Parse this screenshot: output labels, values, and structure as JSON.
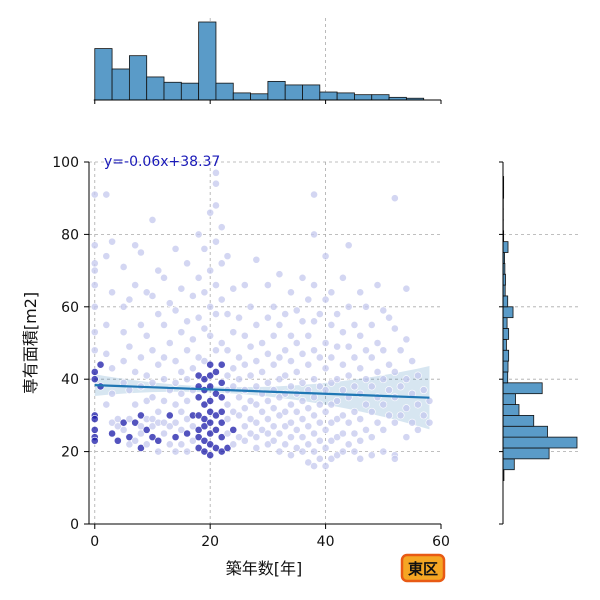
{
  "chart_data": {
    "type": "scatter",
    "xlabel": "築年数[年]",
    "ylabel": "専有面積[m2]",
    "xlim": [
      -1,
      60
    ],
    "ylim": [
      0,
      100
    ],
    "x_ticks": [
      "0",
      "20",
      "40",
      "60"
    ],
    "y_ticks": [
      "0",
      "20",
      "40",
      "60",
      "80",
      "100"
    ],
    "grid": true,
    "annotation": "y=-0.06x+38.37",
    "badge": "東区",
    "regression": {
      "slope": -0.06,
      "intercept": 38.37,
      "x_range": [
        0,
        58
      ]
    },
    "marginal_x_hist": {
      "bin_edges": [
        0,
        3,
        6,
        9,
        12,
        15,
        18,
        21,
        24,
        27,
        30,
        33,
        36,
        39,
        42,
        45,
        48,
        51,
        54,
        57,
        60
      ],
      "counts": [
        58,
        35,
        50,
        26,
        20,
        19,
        88,
        19,
        8,
        7,
        21,
        17,
        17,
        9,
        8,
        6,
        6,
        3,
        2,
        0
      ]
    },
    "marginal_y_hist": {
      "bin_edges": [
        12,
        15,
        18,
        21,
        24,
        27,
        30,
        33,
        36,
        39,
        42,
        45,
        48,
        51,
        54,
        57,
        60,
        63,
        66,
        69,
        72,
        75,
        78,
        81,
        84,
        87,
        90,
        93,
        96
      ],
      "counts": [
        3,
        36,
        147,
        236,
        142,
        98,
        51,
        40,
        125,
        15,
        16,
        18,
        11,
        18,
        13,
        32,
        15,
        7,
        8,
        6,
        5,
        16,
        2,
        1,
        1,
        1,
        2,
        2
      ]
    },
    "colors": {
      "points_light": "#c4c8ee",
      "points_dark": "#1a1aa8",
      "regression": "#1f77b4",
      "hist": "#5a9bc8",
      "annotation": "#1a1ab8",
      "badge_fill": "#f5a623",
      "badge_border": "#e85a14"
    },
    "points": [
      [
        0,
        91
      ],
      [
        2,
        91
      ],
      [
        0,
        77
      ],
      [
        0,
        72
      ],
      [
        0,
        70
      ],
      [
        0,
        66
      ],
      [
        0,
        60
      ],
      [
        0,
        53
      ],
      [
        0,
        48
      ],
      [
        0,
        42
      ],
      [
        0,
        40
      ],
      [
        0,
        30
      ],
      [
        0,
        29
      ],
      [
        0,
        26
      ],
      [
        0,
        24
      ],
      [
        0,
        23
      ],
      [
        1,
        44
      ],
      [
        1,
        38
      ],
      [
        2,
        74
      ],
      [
        2,
        55
      ],
      [
        2,
        47
      ],
      [
        2,
        33
      ],
      [
        3,
        43
      ],
      [
        3,
        78
      ],
      [
        3,
        64
      ],
      [
        3,
        36
      ],
      [
        3,
        28
      ],
      [
        3,
        25
      ],
      [
        4,
        29
      ],
      [
        4,
        27
      ],
      [
        4,
        23
      ],
      [
        5,
        71
      ],
      [
        5,
        60
      ],
      [
        5,
        53
      ],
      [
        5,
        45
      ],
      [
        5,
        39
      ],
      [
        5,
        28
      ],
      [
        5,
        26
      ],
      [
        6,
        62
      ],
      [
        6,
        49
      ],
      [
        6,
        37
      ],
      [
        6,
        29
      ],
      [
        6,
        24
      ],
      [
        6,
        22
      ],
      [
        7,
        77
      ],
      [
        7,
        66
      ],
      [
        7,
        42
      ],
      [
        7,
        33
      ],
      [
        7,
        28
      ],
      [
        7,
        23
      ],
      [
        8,
        75
      ],
      [
        8,
        55
      ],
      [
        8,
        46
      ],
      [
        8,
        38
      ],
      [
        8,
        30
      ],
      [
        8,
        27
      ],
      [
        8,
        25
      ],
      [
        8,
        21
      ],
      [
        9,
        64
      ],
      [
        9,
        52
      ],
      [
        9,
        41
      ],
      [
        9,
        34
      ],
      [
        9,
        29
      ],
      [
        9,
        26
      ],
      [
        9,
        22
      ],
      [
        10,
        84
      ],
      [
        10,
        63
      ],
      [
        10,
        48
      ],
      [
        10,
        39
      ],
      [
        10,
        35
      ],
      [
        10,
        29
      ],
      [
        10,
        27
      ],
      [
        10,
        24
      ],
      [
        11,
        70
      ],
      [
        11,
        58
      ],
      [
        11,
        44
      ],
      [
        11,
        31
      ],
      [
        11,
        28
      ],
      [
        11,
        23
      ],
      [
        11,
        20
      ],
      [
        12,
        68
      ],
      [
        12,
        55
      ],
      [
        12,
        46
      ],
      [
        12,
        40
      ],
      [
        12,
        34
      ],
      [
        12,
        28
      ],
      [
        12,
        25
      ],
      [
        13,
        61
      ],
      [
        13,
        50
      ],
      [
        13,
        37
      ],
      [
        13,
        30
      ],
      [
        13,
        27
      ],
      [
        13,
        22
      ],
      [
        14,
        76
      ],
      [
        14,
        59
      ],
      [
        14,
        45
      ],
      [
        14,
        39
      ],
      [
        14,
        33
      ],
      [
        14,
        28
      ],
      [
        14,
        24
      ],
      [
        14,
        20
      ],
      [
        15,
        65
      ],
      [
        15,
        53
      ],
      [
        15,
        42
      ],
      [
        15,
        36
      ],
      [
        15,
        31
      ],
      [
        15,
        26
      ],
      [
        15,
        22
      ],
      [
        16,
        72
      ],
      [
        16,
        56
      ],
      [
        16,
        48
      ],
      [
        16,
        40
      ],
      [
        16,
        34
      ],
      [
        16,
        29
      ],
      [
        16,
        25
      ],
      [
        16,
        20
      ],
      [
        17,
        63
      ],
      [
        17,
        51
      ],
      [
        17,
        43
      ],
      [
        17,
        37
      ],
      [
        17,
        30
      ],
      [
        17,
        27
      ],
      [
        17,
        23
      ],
      [
        18,
        80
      ],
      [
        18,
        68
      ],
      [
        18,
        57
      ],
      [
        18,
        46
      ],
      [
        18,
        41
      ],
      [
        18,
        38
      ],
      [
        18,
        35
      ],
      [
        18,
        30
      ],
      [
        18,
        26
      ],
      [
        18,
        24
      ],
      [
        18,
        21
      ],
      [
        19,
        76
      ],
      [
        19,
        64
      ],
      [
        19,
        54
      ],
      [
        19,
        45
      ],
      [
        19,
        40
      ],
      [
        19,
        37
      ],
      [
        19,
        33
      ],
      [
        19,
        29
      ],
      [
        19,
        27
      ],
      [
        19,
        23
      ],
      [
        19,
        20
      ],
      [
        20,
        86
      ],
      [
        20,
        70
      ],
      [
        20,
        60
      ],
      [
        20,
        52
      ],
      [
        20,
        44
      ],
      [
        20,
        41
      ],
      [
        20,
        38
      ],
      [
        20,
        34
      ],
      [
        20,
        31
      ],
      [
        20,
        28
      ],
      [
        20,
        25
      ],
      [
        20,
        22
      ],
      [
        20,
        19
      ],
      [
        21,
        97
      ],
      [
        21,
        94
      ],
      [
        21,
        88
      ],
      [
        21,
        78
      ],
      [
        21,
        66
      ],
      [
        21,
        58
      ],
      [
        21,
        48
      ],
      [
        21,
        42
      ],
      [
        21,
        36
      ],
      [
        21,
        30
      ],
      [
        21,
        26
      ],
      [
        21,
        21
      ],
      [
        22,
        82
      ],
      [
        22,
        72
      ],
      [
        22,
        62
      ],
      [
        22,
        50
      ],
      [
        22,
        44
      ],
      [
        22,
        39
      ],
      [
        22,
        35
      ],
      [
        22,
        31
      ],
      [
        22,
        28
      ],
      [
        22,
        24
      ],
      [
        22,
        20
      ],
      [
        23,
        74
      ],
      [
        23,
        58
      ],
      [
        23,
        48
      ],
      [
        23,
        41
      ],
      [
        23,
        37
      ],
      [
        23,
        33
      ],
      [
        23,
        29
      ],
      [
        23,
        25
      ],
      [
        23,
        21
      ],
      [
        24,
        65
      ],
      [
        24,
        53
      ],
      [
        24,
        43
      ],
      [
        24,
        38
      ],
      [
        24,
        31
      ],
      [
        24,
        26
      ],
      [
        24,
        22
      ],
      [
        25,
        57
      ],
      [
        25,
        46
      ],
      [
        25,
        40
      ],
      [
        25,
        35
      ],
      [
        25,
        30
      ],
      [
        25,
        24
      ],
      [
        26,
        66
      ],
      [
        26,
        52
      ],
      [
        26,
        44
      ],
      [
        26,
        37
      ],
      [
        26,
        32
      ],
      [
        26,
        27
      ],
      [
        26,
        23
      ],
      [
        27,
        60
      ],
      [
        27,
        49
      ],
      [
        27,
        41
      ],
      [
        27,
        34
      ],
      [
        27,
        29
      ],
      [
        27,
        25
      ],
      [
        28,
        73
      ],
      [
        28,
        55
      ],
      [
        28,
        45
      ],
      [
        28,
        38
      ],
      [
        28,
        33
      ],
      [
        28,
        28
      ],
      [
        28,
        24
      ],
      [
        28,
        21
      ],
      [
        29,
        50
      ],
      [
        29,
        42
      ],
      [
        29,
        36
      ],
      [
        29,
        31
      ],
      [
        29,
        26
      ],
      [
        30,
        66
      ],
      [
        30,
        57
      ],
      [
        30,
        47
      ],
      [
        30,
        39
      ],
      [
        30,
        34
      ],
      [
        30,
        29
      ],
      [
        30,
        25
      ],
      [
        30,
        22
      ],
      [
        31,
        60
      ],
      [
        31,
        52
      ],
      [
        31,
        44
      ],
      [
        31,
        37
      ],
      [
        31,
        32
      ],
      [
        31,
        27
      ],
      [
        31,
        23
      ],
      [
        32,
        69
      ],
      [
        32,
        55
      ],
      [
        32,
        46
      ],
      [
        32,
        40
      ],
      [
        32,
        35
      ],
      [
        32,
        30
      ],
      [
        32,
        25
      ],
      [
        32,
        20
      ],
      [
        33,
        58
      ],
      [
        33,
        48
      ],
      [
        33,
        41
      ],
      [
        33,
        36
      ],
      [
        33,
        31
      ],
      [
        33,
        27
      ],
      [
        33,
        22
      ],
      [
        34,
        64
      ],
      [
        34,
        52
      ],
      [
        34,
        45
      ],
      [
        34,
        38
      ],
      [
        34,
        33
      ],
      [
        34,
        28
      ],
      [
        34,
        24
      ],
      [
        34,
        19
      ],
      [
        35,
        59
      ],
      [
        35,
        50
      ],
      [
        35,
        42
      ],
      [
        35,
        36
      ],
      [
        35,
        31
      ],
      [
        35,
        26
      ],
      [
        35,
        21
      ],
      [
        36,
        68
      ],
      [
        36,
        56
      ],
      [
        36,
        47
      ],
      [
        36,
        39
      ],
      [
        36,
        34
      ],
      [
        36,
        29
      ],
      [
        36,
        24
      ],
      [
        36,
        20
      ],
      [
        37,
        62
      ],
      [
        37,
        52
      ],
      [
        37,
        44
      ],
      [
        37,
        37
      ],
      [
        37,
        32
      ],
      [
        37,
        27
      ],
      [
        37,
        22
      ],
      [
        37,
        17
      ],
      [
        38,
        91
      ],
      [
        38,
        80
      ],
      [
        38,
        66
      ],
      [
        38,
        56
      ],
      [
        38,
        48
      ],
      [
        38,
        40
      ],
      [
        38,
        35
      ],
      [
        38,
        30
      ],
      [
        38,
        25
      ],
      [
        38,
        20
      ],
      [
        38,
        16
      ],
      [
        39,
        58
      ],
      [
        39,
        46
      ],
      [
        39,
        38
      ],
      [
        39,
        33
      ],
      [
        39,
        28
      ],
      [
        39,
        23
      ],
      [
        39,
        18
      ],
      [
        40,
        74
      ],
      [
        40,
        62
      ],
      [
        40,
        50
      ],
      [
        40,
        43
      ],
      [
        40,
        37
      ],
      [
        40,
        31
      ],
      [
        40,
        26
      ],
      [
        40,
        21
      ],
      [
        40,
        16
      ],
      [
        41,
        64
      ],
      [
        41,
        55
      ],
      [
        41,
        46
      ],
      [
        41,
        39
      ],
      [
        41,
        33
      ],
      [
        41,
        28
      ],
      [
        41,
        23
      ],
      [
        41,
        18
      ],
      [
        42,
        58
      ],
      [
        42,
        49
      ],
      [
        42,
        40
      ],
      [
        42,
        34
      ],
      [
        42,
        29
      ],
      [
        42,
        24
      ],
      [
        42,
        19
      ],
      [
        43,
        68
      ],
      [
        43,
        53
      ],
      [
        43,
        44
      ],
      [
        43,
        37
      ],
      [
        43,
        30
      ],
      [
        43,
        25
      ],
      [
        43,
        20
      ],
      [
        44,
        77
      ],
      [
        44,
        60
      ],
      [
        44,
        49
      ],
      [
        44,
        41
      ],
      [
        44,
        35
      ],
      [
        44,
        28
      ],
      [
        44,
        22
      ],
      [
        45,
        55
      ],
      [
        45,
        46
      ],
      [
        45,
        38
      ],
      [
        45,
        31
      ],
      [
        45,
        25
      ],
      [
        45,
        20
      ],
      [
        46,
        64
      ],
      [
        46,
        52
      ],
      [
        46,
        43
      ],
      [
        46,
        36
      ],
      [
        46,
        29
      ],
      [
        46,
        23
      ],
      [
        46,
        18
      ],
      [
        47,
        60
      ],
      [
        47,
        48
      ],
      [
        47,
        40
      ],
      [
        47,
        33
      ],
      [
        47,
        26
      ],
      [
        48,
        55
      ],
      [
        48,
        46
      ],
      [
        48,
        38
      ],
      [
        48,
        31
      ],
      [
        48,
        24
      ],
      [
        48,
        19
      ],
      [
        49,
        66
      ],
      [
        49,
        50
      ],
      [
        49,
        42
      ],
      [
        49,
        35
      ],
      [
        49,
        28
      ],
      [
        50,
        59
      ],
      [
        50,
        48
      ],
      [
        50,
        40
      ],
      [
        50,
        33
      ],
      [
        50,
        26
      ],
      [
        50,
        20
      ],
      [
        51,
        57
      ],
      [
        51,
        44
      ],
      [
        51,
        37
      ],
      [
        51,
        30
      ],
      [
        52,
        90
      ],
      [
        52,
        54
      ],
      [
        52,
        42
      ],
      [
        52,
        35
      ],
      [
        52,
        28
      ],
      [
        52,
        19
      ],
      [
        52,
        18
      ],
      [
        53,
        48
      ],
      [
        53,
        38
      ],
      [
        53,
        30
      ],
      [
        54,
        65
      ],
      [
        54,
        51
      ],
      [
        54,
        40
      ],
      [
        54,
        32
      ],
      [
        54,
        24
      ],
      [
        55,
        45
      ],
      [
        55,
        36
      ],
      [
        55,
        28
      ],
      [
        56,
        41
      ],
      [
        56,
        33
      ],
      [
        56,
        26
      ],
      [
        57,
        37
      ],
      [
        57,
        30
      ],
      [
        58,
        34
      ],
      [
        58,
        28
      ]
    ]
  }
}
